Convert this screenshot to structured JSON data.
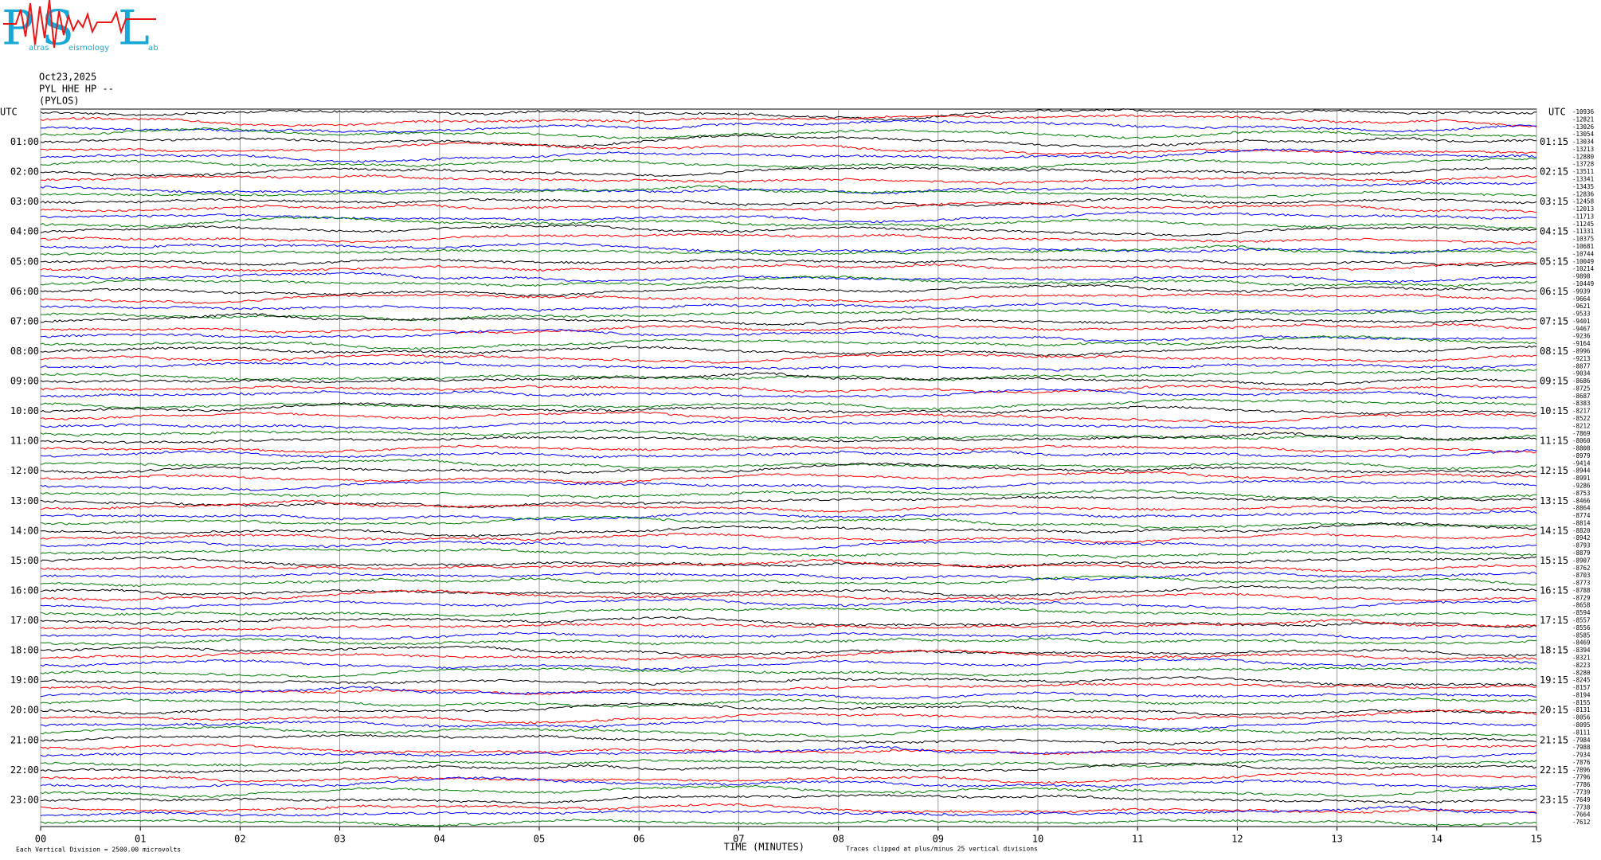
{
  "chart_data": {
    "type": "helicorder",
    "logo": {
      "letters": [
        "P",
        "S",
        "L"
      ],
      "words": [
        "atras",
        "eismology",
        "ab"
      ]
    },
    "title_lines": [
      "Oct23,2025",
      "PYL HHE HP --",
      "(PYLOS)"
    ],
    "left_labels": [
      "UTC",
      "01:00",
      "02:00",
      "03:00",
      "04:00",
      "05:00",
      "06:00",
      "07:00",
      "08:00",
      "09:00",
      "10:00",
      "11:00",
      "12:00",
      "13:00",
      "14:00",
      "15:00",
      "16:00",
      "17:00",
      "18:00",
      "19:00",
      "20:00",
      "21:00",
      "22:00",
      "23:00"
    ],
    "right_labels": [
      "UTC",
      "01:15",
      "02:15",
      "03:15",
      "04:15",
      "05:15",
      "06:15",
      "07:15",
      "08:15",
      "09:15",
      "10:15",
      "11:15",
      "12:15",
      "13:15",
      "14:15",
      "15:15",
      "16:15",
      "17:15",
      "18:15",
      "19:15",
      "20:15",
      "21:15",
      "22:15",
      "23:15"
    ],
    "trace_offsets": [
      -10936,
      -12821,
      -13026,
      -13054,
      -13034,
      -13213,
      -12880,
      -13728,
      -13511,
      -13341,
      -13435,
      -12836,
      -12458,
      -12013,
      -11713,
      -11245,
      -11331,
      -10375,
      -10681,
      -10744,
      -10049,
      -10214,
      -9898,
      -10449,
      -9939,
      -9664,
      -9621,
      -9533,
      -9401,
      -9467,
      -9236,
      -9164,
      -8996,
      -9213,
      -8877,
      -9034,
      -8686,
      -8725,
      -8687,
      -8383,
      -8217,
      -8522,
      -8212,
      -7869,
      -8060,
      -8808,
      -8979,
      -9414,
      -8944,
      -8991,
      -9286,
      -8753,
      -8466,
      -8864,
      -8774,
      -8814,
      -8820,
      -8942,
      -8793,
      -8879,
      -8907,
      -8762,
      -8703,
      -8773,
      -8788,
      -8729,
      -8658,
      -8594,
      -8557,
      -8556,
      -8585,
      -8469,
      -8394,
      -8321,
      -8223,
      -8280,
      -8245,
      -8157,
      -8194,
      -8155,
      -8131,
      -8056,
      -8095,
      -8111,
      -7984,
      -7988,
      -7934,
      -7876,
      -7896,
      -7796,
      -7786,
      -7739,
      -7649,
      -7738,
      -7664,
      -7612
    ],
    "trace_colors": [
      "#000000",
      "#ff0000",
      "#0000ff",
      "#007f00"
    ],
    "xlim": [
      0,
      15
    ],
    "xticks": [
      {
        "value": 0,
        "label": "00"
      },
      {
        "value": 1,
        "label": "01"
      },
      {
        "value": 2,
        "label": "02"
      },
      {
        "value": 3,
        "label": "03"
      },
      {
        "value": 4,
        "label": "04"
      },
      {
        "value": 5,
        "label": "05"
      },
      {
        "value": 6,
        "label": "06"
      },
      {
        "value": 7,
        "label": "07"
      },
      {
        "value": 8,
        "label": "08"
      },
      {
        "value": 9,
        "label": "09"
      },
      {
        "value": 10,
        "label": "10"
      },
      {
        "value": 11,
        "label": "11"
      },
      {
        "value": 12,
        "label": "12"
      },
      {
        "value": 13,
        "label": "13"
      },
      {
        "value": 14,
        "label": "14"
      },
      {
        "value": 15,
        "label": "15"
      }
    ],
    "x_label": "TIME (MINUTES)",
    "scale_note": "Each Vertical Division = 2500.00 microvolts",
    "clip_note": "Traces clipped at plus/minus 25 vertical divisions",
    "grid": true
  }
}
